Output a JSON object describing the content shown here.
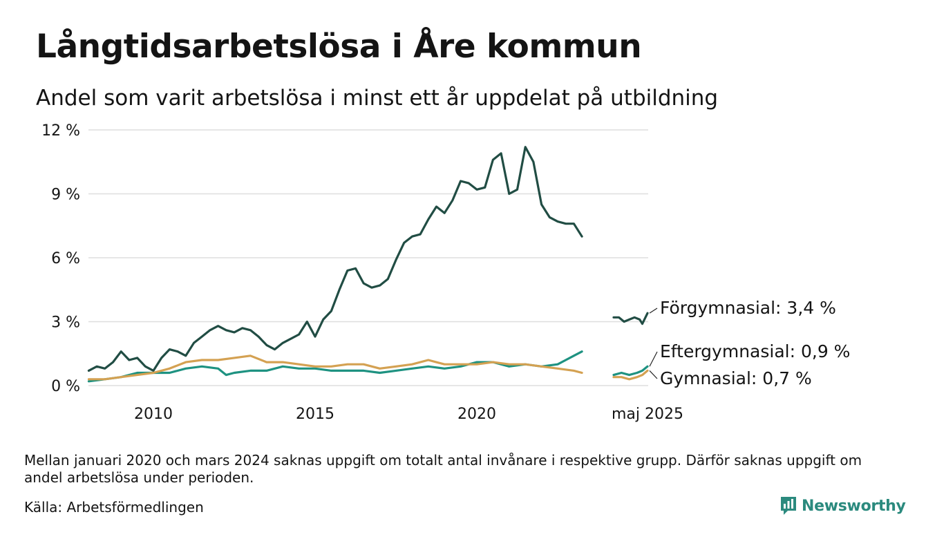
{
  "header": {
    "title": "Långtidsarbetslösa i Åre kommun",
    "subtitle": "Andel som varit arbetslösa i minst ett år uppdelat på utbildning"
  },
  "footer": {
    "note": "Mellan januari 2020 och mars 2024 saknas uppgift om totalt antal invånare i respektive grupp. Därför saknas uppgift om andel arbetslösa under perioden.",
    "source": "Källa: Arbetsförmedlingen",
    "brand": "Newsworthy",
    "brand_icon": "bar-chart-logo-icon",
    "brand_color": "#2b8a7e"
  },
  "chart_data": {
    "type": "line",
    "x_ticks": [
      "2010",
      "2015",
      "2020",
      "maj 2025"
    ],
    "y_ticks": [
      "0 %",
      "3 %",
      "6 %",
      "9 %",
      "12 %"
    ],
    "ylim": [
      0,
      12
    ],
    "grid": true,
    "legend": "end-labels-right",
    "series": [
      {
        "name": "Förgymnasial",
        "end_label": "Förgymnasial: 3,4 %",
        "color": "#214d44",
        "points": [
          [
            "2008-01",
            0.7
          ],
          [
            "2008-04",
            0.9
          ],
          [
            "2008-07",
            0.8
          ],
          [
            "2008-10",
            1.1
          ],
          [
            "2009-01",
            1.6
          ],
          [
            "2009-04",
            1.2
          ],
          [
            "2009-07",
            1.3
          ],
          [
            "2009-10",
            0.9
          ],
          [
            "2010-01",
            0.7
          ],
          [
            "2010-04",
            1.3
          ],
          [
            "2010-07",
            1.7
          ],
          [
            "2010-10",
            1.6
          ],
          [
            "2011-01",
            1.4
          ],
          [
            "2011-04",
            2.0
          ],
          [
            "2011-07",
            2.3
          ],
          [
            "2011-10",
            2.6
          ],
          [
            "2012-01",
            2.8
          ],
          [
            "2012-04",
            2.6
          ],
          [
            "2012-07",
            2.5
          ],
          [
            "2012-10",
            2.7
          ],
          [
            "2013-01",
            2.6
          ],
          [
            "2013-04",
            2.3
          ],
          [
            "2013-07",
            1.9
          ],
          [
            "2013-10",
            1.7
          ],
          [
            "2014-01",
            2.0
          ],
          [
            "2014-04",
            2.2
          ],
          [
            "2014-07",
            2.4
          ],
          [
            "2014-10",
            3.0
          ],
          [
            "2015-01",
            2.3
          ],
          [
            "2015-04",
            3.1
          ],
          [
            "2015-07",
            3.5
          ],
          [
            "2015-10",
            4.5
          ],
          [
            "2016-01",
            5.4
          ],
          [
            "2016-04",
            5.5
          ],
          [
            "2016-07",
            4.8
          ],
          [
            "2016-10",
            4.6
          ],
          [
            "2017-01",
            4.7
          ],
          [
            "2017-04",
            5.0
          ],
          [
            "2017-07",
            5.9
          ],
          [
            "2017-10",
            6.7
          ],
          [
            "2018-01",
            7.0
          ],
          [
            "2018-04",
            7.1
          ],
          [
            "2018-07",
            7.8
          ],
          [
            "2018-10",
            8.4
          ],
          [
            "2019-01",
            8.1
          ],
          [
            "2019-04",
            8.7
          ],
          [
            "2019-07",
            9.6
          ],
          [
            "2019-10",
            9.5
          ],
          [
            "2020-01",
            9.2
          ],
          [
            "2020-04",
            9.3
          ],
          [
            "2020-07",
            10.6
          ],
          [
            "2020-10",
            10.9
          ],
          [
            "2021-01",
            9.0
          ],
          [
            "2021-04",
            9.2
          ],
          [
            "2021-07",
            11.2
          ],
          [
            "2021-10",
            10.5
          ],
          [
            "2022-01",
            8.5
          ],
          [
            "2022-04",
            7.9
          ],
          [
            "2022-07",
            7.7
          ],
          [
            "2022-10",
            7.6
          ],
          [
            "2023-01",
            7.6
          ],
          [
            "2023-04",
            7.0
          ]
        ],
        "points_2025": [
          [
            "2024-04",
            3.2
          ],
          [
            "2024-06",
            3.2
          ],
          [
            "2024-08",
            3.0
          ],
          [
            "2024-10",
            3.1
          ],
          [
            "2024-12",
            3.2
          ],
          [
            "2025-02",
            3.1
          ],
          [
            "2025-03",
            2.9
          ],
          [
            "2025-05",
            3.4
          ]
        ]
      },
      {
        "name": "Eftergymnasial",
        "end_label": "Eftergymnasial: 0,9 %",
        "color": "#1e9281",
        "points": [
          [
            "2008-01",
            0.2
          ],
          [
            "2008-07",
            0.3
          ],
          [
            "2009-01",
            0.4
          ],
          [
            "2009-07",
            0.6
          ],
          [
            "2010-01",
            0.6
          ],
          [
            "2010-07",
            0.6
          ],
          [
            "2011-01",
            0.8
          ],
          [
            "2011-07",
            0.9
          ],
          [
            "2012-01",
            0.8
          ],
          [
            "2012-04",
            0.5
          ],
          [
            "2012-07",
            0.6
          ],
          [
            "2013-01",
            0.7
          ],
          [
            "2013-07",
            0.7
          ],
          [
            "2014-01",
            0.9
          ],
          [
            "2014-07",
            0.8
          ],
          [
            "2015-01",
            0.8
          ],
          [
            "2015-07",
            0.7
          ],
          [
            "2016-01",
            0.7
          ],
          [
            "2016-07",
            0.7
          ],
          [
            "2017-01",
            0.6
          ],
          [
            "2017-07",
            0.7
          ],
          [
            "2018-01",
            0.8
          ],
          [
            "2018-07",
            0.9
          ],
          [
            "2019-01",
            0.8
          ],
          [
            "2019-07",
            0.9
          ],
          [
            "2020-01",
            1.1
          ],
          [
            "2020-07",
            1.1
          ],
          [
            "2021-01",
            0.9
          ],
          [
            "2021-07",
            1.0
          ],
          [
            "2022-01",
            0.9
          ],
          [
            "2022-07",
            1.0
          ],
          [
            "2022-10",
            1.2
          ],
          [
            "2023-01",
            1.4
          ],
          [
            "2023-04",
            1.6
          ]
        ],
        "points_2025": [
          [
            "2024-04",
            0.5
          ],
          [
            "2024-07",
            0.6
          ],
          [
            "2024-10",
            0.5
          ],
          [
            "2025-01",
            0.6
          ],
          [
            "2025-03",
            0.7
          ],
          [
            "2025-05",
            0.9
          ]
        ]
      },
      {
        "name": "Gymnasial",
        "end_label": "Gymnasial: 0,7 %",
        "color": "#d4a152",
        "points": [
          [
            "2008-01",
            0.3
          ],
          [
            "2008-07",
            0.3
          ],
          [
            "2009-01",
            0.4
          ],
          [
            "2009-07",
            0.5
          ],
          [
            "2010-01",
            0.6
          ],
          [
            "2010-07",
            0.8
          ],
          [
            "2011-01",
            1.1
          ],
          [
            "2011-07",
            1.2
          ],
          [
            "2012-01",
            1.2
          ],
          [
            "2012-07",
            1.3
          ],
          [
            "2013-01",
            1.4
          ],
          [
            "2013-07",
            1.1
          ],
          [
            "2014-01",
            1.1
          ],
          [
            "2014-07",
            1.0
          ],
          [
            "2015-01",
            0.9
          ],
          [
            "2015-07",
            0.9
          ],
          [
            "2016-01",
            1.0
          ],
          [
            "2016-07",
            1.0
          ],
          [
            "2017-01",
            0.8
          ],
          [
            "2017-07",
            0.9
          ],
          [
            "2018-01",
            1.0
          ],
          [
            "2018-07",
            1.2
          ],
          [
            "2019-01",
            1.0
          ],
          [
            "2019-07",
            1.0
          ],
          [
            "2020-01",
            1.0
          ],
          [
            "2020-07",
            1.1
          ],
          [
            "2021-01",
            1.0
          ],
          [
            "2021-07",
            1.0
          ],
          [
            "2022-01",
            0.9
          ],
          [
            "2022-07",
            0.8
          ],
          [
            "2023-01",
            0.7
          ],
          [
            "2023-04",
            0.6
          ]
        ],
        "points_2025": [
          [
            "2024-04",
            0.4
          ],
          [
            "2024-07",
            0.4
          ],
          [
            "2024-10",
            0.3
          ],
          [
            "2025-01",
            0.4
          ],
          [
            "2025-03",
            0.5
          ],
          [
            "2025-05",
            0.7
          ]
        ]
      }
    ]
  }
}
